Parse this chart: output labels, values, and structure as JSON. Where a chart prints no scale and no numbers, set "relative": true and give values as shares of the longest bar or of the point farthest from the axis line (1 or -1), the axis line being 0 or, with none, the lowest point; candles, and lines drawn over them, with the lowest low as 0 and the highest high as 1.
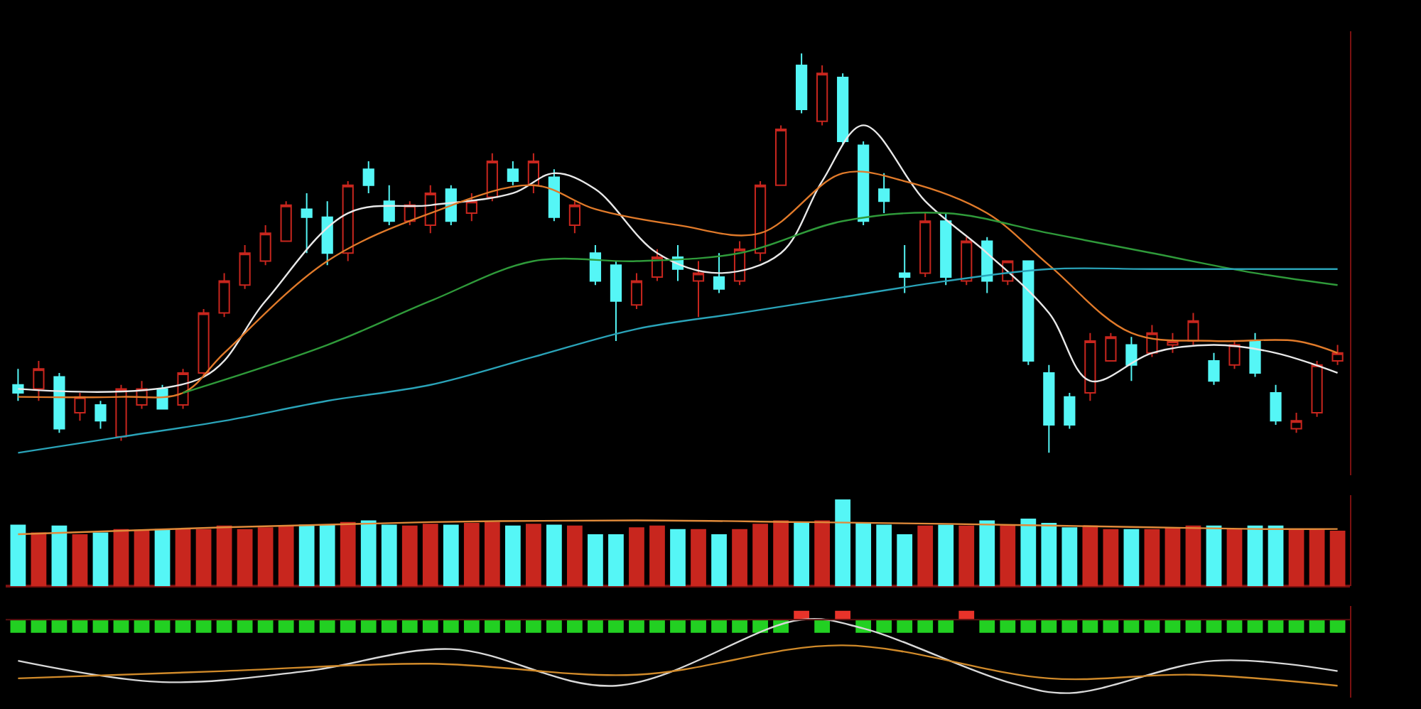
{
  "chart_data": [
    {
      "type": "candlestick",
      "relative": true,
      "categories": [
        null,
        null,
        null,
        null,
        null,
        null,
        null,
        null,
        null,
        null,
        null,
        null,
        null,
        null,
        null,
        null,
        null,
        null,
        null,
        null,
        null,
        null,
        null,
        null,
        null,
        null,
        null,
        null,
        null,
        null,
        null,
        null,
        null,
        null,
        null,
        null,
        null,
        null,
        null,
        null,
        null,
        null,
        null,
        null,
        null,
        null,
        null,
        null,
        null,
        null,
        null,
        null,
        null,
        null,
        null,
        null,
        null,
        null,
        null,
        null,
        null,
        null,
        null,
        null,
        null
      ],
      "ohlc": [
        [
          0.17,
          0.21,
          0.13,
          0.15
        ],
        [
          0.16,
          0.23,
          0.13,
          0.21
        ],
        [
          0.19,
          0.2,
          0.05,
          0.06
        ],
        [
          0.1,
          0.15,
          0.08,
          0.14
        ],
        [
          0.12,
          0.13,
          0.06,
          0.08
        ],
        [
          0.04,
          0.17,
          0.03,
          0.16
        ],
        [
          0.12,
          0.18,
          0.11,
          0.16
        ],
        [
          0.16,
          0.17,
          0.11,
          0.11
        ],
        [
          0.12,
          0.21,
          0.11,
          0.2
        ],
        [
          0.2,
          0.36,
          0.19,
          0.35
        ],
        [
          0.35,
          0.45,
          0.34,
          0.43
        ],
        [
          0.42,
          0.52,
          0.41,
          0.5
        ],
        [
          0.48,
          0.57,
          0.47,
          0.55
        ],
        [
          0.53,
          0.63,
          0.53,
          0.62
        ],
        [
          0.61,
          0.65,
          0.5,
          0.59
        ],
        [
          0.59,
          0.63,
          0.47,
          0.5
        ],
        [
          0.5,
          0.68,
          0.48,
          0.67
        ],
        [
          0.71,
          0.73,
          0.65,
          0.67
        ],
        [
          0.63,
          0.67,
          0.57,
          0.58
        ],
        [
          0.58,
          0.63,
          0.57,
          0.62
        ],
        [
          0.57,
          0.67,
          0.55,
          0.65
        ],
        [
          0.66,
          0.67,
          0.57,
          0.58
        ],
        [
          0.6,
          0.65,
          0.58,
          0.63
        ],
        [
          0.64,
          0.75,
          0.63,
          0.73
        ],
        [
          0.71,
          0.73,
          0.67,
          0.68
        ],
        [
          0.67,
          0.75,
          0.65,
          0.73
        ],
        [
          0.69,
          0.71,
          0.58,
          0.59
        ],
        [
          0.57,
          0.63,
          0.55,
          0.62
        ],
        [
          0.5,
          0.52,
          0.42,
          0.43
        ],
        [
          0.47,
          0.48,
          0.28,
          0.38
        ],
        [
          0.37,
          0.45,
          0.36,
          0.43
        ],
        [
          0.44,
          0.51,
          0.43,
          0.49
        ],
        [
          0.49,
          0.52,
          0.43,
          0.46
        ],
        [
          0.43,
          0.48,
          0.34,
          0.45
        ],
        [
          0.44,
          0.5,
          0.4,
          0.41
        ],
        [
          0.43,
          0.53,
          0.42,
          0.51
        ],
        [
          0.5,
          0.68,
          0.48,
          0.67
        ],
        [
          0.67,
          0.82,
          0.67,
          0.81
        ],
        [
          0.97,
          1.0,
          0.85,
          0.86
        ],
        [
          0.83,
          0.97,
          0.82,
          0.95
        ],
        [
          0.94,
          0.95,
          0.77,
          0.78
        ],
        [
          0.77,
          0.78,
          0.57,
          0.58
        ],
        [
          0.66,
          0.7,
          0.6,
          0.63
        ],
        [
          0.45,
          0.52,
          0.4,
          0.44
        ],
        [
          0.45,
          0.6,
          0.44,
          0.58
        ],
        [
          0.58,
          0.6,
          0.42,
          0.44
        ],
        [
          0.43,
          0.54,
          0.42,
          0.53
        ],
        [
          0.53,
          0.54,
          0.4,
          0.43
        ],
        [
          0.43,
          0.48,
          0.42,
          0.48
        ],
        [
          0.48,
          0.48,
          0.22,
          0.23
        ],
        [
          0.2,
          0.22,
          0.0,
          0.07
        ],
        [
          0.14,
          0.15,
          0.06,
          0.07
        ],
        [
          0.15,
          0.3,
          0.13,
          0.28
        ],
        [
          0.23,
          0.3,
          0.23,
          0.29
        ],
        [
          0.27,
          0.29,
          0.18,
          0.22
        ],
        [
          0.25,
          0.32,
          0.24,
          0.3
        ],
        [
          0.27,
          0.3,
          0.25,
          0.28
        ],
        [
          0.28,
          0.35,
          0.27,
          0.33
        ],
        [
          0.23,
          0.25,
          0.17,
          0.18
        ],
        [
          0.22,
          0.28,
          0.21,
          0.27
        ],
        [
          0.28,
          0.3,
          0.19,
          0.2
        ],
        [
          0.15,
          0.17,
          0.07,
          0.08
        ],
        [
          0.06,
          0.1,
          0.05,
          0.08
        ],
        [
          0.1,
          0.23,
          0.09,
          0.22
        ],
        [
          0.23,
          0.27,
          0.22,
          0.25
        ]
      ],
      "series": [
        {
          "type": "line",
          "color": "#e8e8e8",
          "values": [
            0.16,
            null,
            null,
            null,
            null,
            null,
            null,
            null,
            null,
            0.19,
            null,
            null,
            0.38,
            null,
            null,
            null,
            0.6,
            null,
            null,
            null,
            0.62,
            null,
            null,
            null,
            0.65,
            null,
            0.7,
            null,
            0.66,
            null,
            null,
            0.5,
            null,
            null,
            0.45,
            null,
            null,
            0.5,
            null,
            0.68,
            null,
            0.82,
            null,
            null,
            0.63,
            null,
            null,
            0.5,
            null,
            null,
            0.35,
            null,
            0.18,
            null,
            null,
            0.25,
            null,
            null,
            0.27,
            null,
            null,
            0.25,
            null,
            null,
            0.2
          ]
        },
        {
          "type": "line",
          "color": "#e07a2a",
          "values": [
            0.14,
            null,
            null,
            null,
            null,
            0.14,
            null,
            null,
            0.15,
            null,
            0.25,
            null,
            null,
            null,
            null,
            0.48,
            null,
            null,
            null,
            null,
            0.6,
            null,
            null,
            null,
            null,
            0.67,
            null,
            null,
            0.61,
            null,
            null,
            null,
            0.57,
            null,
            null,
            null,
            0.55,
            null,
            null,
            null,
            0.7,
            null,
            null,
            0.68,
            null,
            null,
            null,
            0.6,
            null,
            null,
            0.47,
            null,
            null,
            null,
            0.3,
            null,
            null,
            null,
            0.28,
            null,
            null,
            null,
            0.28,
            null,
            0.25
          ]
        },
        {
          "type": "line",
          "color": "#2f9a3a",
          "values": [
            null,
            null,
            null,
            null,
            null,
            null,
            null,
            null,
            0.15,
            null,
            null,
            null,
            null,
            null,
            null,
            0.27,
            null,
            null,
            null,
            null,
            0.38,
            null,
            null,
            null,
            null,
            0.48,
            null,
            null,
            null,
            null,
            0.48,
            null,
            null,
            null,
            null,
            0.5,
            null,
            null,
            null,
            null,
            0.58,
            null,
            null,
            null,
            null,
            0.6,
            null,
            null,
            null,
            null,
            0.55,
            null,
            null,
            null,
            null,
            0.5,
            null,
            null,
            null,
            null,
            0.45,
            null,
            null,
            null,
            0.42
          ]
        },
        {
          "type": "line",
          "color": "#2aa3b8",
          "values": [
            0.0,
            null,
            null,
            null,
            null,
            0.04,
            null,
            null,
            null,
            null,
            0.08,
            null,
            null,
            null,
            null,
            0.13,
            null,
            null,
            null,
            null,
            0.17,
            null,
            null,
            null,
            null,
            0.24,
            null,
            null,
            null,
            null,
            0.31,
            null,
            null,
            null,
            null,
            0.35,
            null,
            null,
            null,
            null,
            0.39,
            null,
            null,
            null,
            null,
            0.43,
            null,
            null,
            null,
            null,
            0.46,
            null,
            null,
            null,
            null,
            0.46,
            null,
            null,
            null,
            null,
            0.46,
            null,
            null,
            null,
            0.46
          ]
        }
      ]
    },
    {
      "type": "bar",
      "relative": true,
      "categories": [
        null,
        null,
        null,
        null,
        null,
        null,
        null,
        null,
        null,
        null,
        null,
        null,
        null,
        null,
        null,
        null,
        null,
        null,
        null,
        null,
        null,
        null,
        null,
        null,
        null,
        null,
        null,
        null,
        null,
        null,
        null,
        null,
        null,
        null,
        null,
        null,
        null,
        null,
        null,
        null,
        null,
        null,
        null,
        null,
        null,
        null,
        null,
        null,
        null,
        null,
        null,
        null,
        null,
        null,
        null,
        null,
        null,
        null,
        null,
        null,
        null,
        null,
        null,
        null,
        null
      ],
      "values": [
        0.71,
        0.62,
        0.7,
        0.6,
        0.62,
        0.66,
        0.65,
        0.66,
        0.66,
        0.66,
        0.7,
        0.66,
        0.68,
        0.7,
        0.71,
        0.71,
        0.74,
        0.76,
        0.71,
        0.7,
        0.72,
        0.71,
        0.73,
        0.74,
        0.7,
        0.72,
        0.71,
        0.7,
        0.6,
        0.6,
        0.68,
        0.7,
        0.66,
        0.66,
        0.6,
        0.66,
        0.72,
        0.76,
        0.73,
        0.76,
        1,
        0.73,
        0.71,
        0.6,
        0.7,
        0.71,
        0.7,
        0.76,
        0.7,
        0.78,
        0.73,
        0.68,
        0.7,
        0.66,
        0.66,
        0.66,
        0.68,
        0.7,
        0.7,
        0.66,
        0.7,
        0.7,
        0.66,
        0.66,
        0.64
      ],
      "colors": [
        "#55f6f6",
        "#c8261e",
        "#55f6f6",
        "#c8261e",
        "#55f6f6",
        "#c8261e",
        "#c8261e",
        "#55f6f6",
        "#c8261e",
        "#c8261e",
        "#c8261e",
        "#c8261e",
        "#c8261e",
        "#c8261e",
        "#55f6f6",
        "#55f6f6",
        "#c8261e",
        "#55f6f6",
        "#55f6f6",
        "#c8261e",
        "#c8261e",
        "#55f6f6",
        "#c8261e",
        "#c8261e",
        "#55f6f6",
        "#c8261e",
        "#55f6f6",
        "#c8261e",
        "#55f6f6",
        "#55f6f6",
        "#c8261e",
        "#c8261e",
        "#55f6f6",
        "#c8261e",
        "#55f6f6",
        "#c8261e",
        "#c8261e",
        "#c8261e",
        "#55f6f6",
        "#c8261e",
        "#55f6f6",
        "#55f6f6",
        "#55f6f6",
        "#55f6f6",
        "#c8261e",
        "#55f6f6",
        "#c8261e",
        "#55f6f6",
        "#c8261e",
        "#55f6f6",
        "#55f6f6",
        "#55f6f6",
        "#c8261e",
        "#c8261e",
        "#55f6f6",
        "#c8261e",
        "#c8261e",
        "#c8261e",
        "#55f6f6",
        "#c8261e",
        "#55f6f6",
        "#55f6f6",
        "#c8261e",
        "#c8261e",
        "#c8261e"
      ],
      "series": [
        {
          "type": "line",
          "color": "#e08a3a",
          "values": [
            0.6,
            null,
            null,
            null,
            null,
            null,
            null,
            null,
            null,
            null,
            0.68,
            null,
            null,
            null,
            null,
            null,
            null,
            null,
            null,
            null,
            0.74,
            null,
            null,
            null,
            null,
            null,
            null,
            null,
            null,
            null,
            0.76,
            null,
            null,
            null,
            null,
            null,
            null,
            null,
            0.74,
            null,
            null,
            null,
            null,
            null,
            null,
            0.72,
            null,
            null,
            null,
            null,
            0.7,
            null,
            null,
            null,
            null,
            0.68,
            null,
            null,
            null,
            null,
            0.66,
            null,
            null,
            null,
            0.66
          ]
        }
      ]
    },
    {
      "type": "bar",
      "relative": true,
      "categories": [
        null,
        null,
        null,
        null,
        null,
        null,
        null,
        null,
        null,
        null,
        null,
        null,
        null,
        null,
        null,
        null,
        null,
        null,
        null,
        null,
        null,
        null,
        null,
        null,
        null,
        null,
        null,
        null,
        null,
        null,
        null,
        null,
        null,
        null,
        null,
        null,
        null,
        null,
        null,
        null,
        null,
        null,
        null,
        null,
        null,
        null,
        null,
        null,
        null,
        null,
        null,
        null,
        null,
        null,
        null,
        null,
        null,
        null,
        null,
        null,
        null,
        null,
        null,
        null,
        null
      ],
      "values": [
        -0.18,
        -0.18,
        -0.18,
        -0.18,
        -0.18,
        -0.18,
        -0.18,
        -0.18,
        -0.18,
        -0.18,
        -0.18,
        -0.18,
        -0.18,
        -0.18,
        -0.18,
        -0.18,
        -0.18,
        -0.18,
        -0.18,
        -0.18,
        -0.18,
        -0.18,
        -0.18,
        -0.18,
        -0.18,
        -0.18,
        -0.18,
        -0.18,
        -0.18,
        -0.18,
        -0.18,
        -0.18,
        -0.18,
        -0.18,
        -0.18,
        -0.18,
        -0.18,
        -0.18,
        0.12,
        -0.18,
        0.12,
        -0.18,
        -0.18,
        -0.18,
        -0.18,
        -0.18,
        0.12,
        -0.18,
        -0.18,
        -0.18,
        -0.18,
        -0.18,
        -0.18,
        -0.18,
        -0.18,
        -0.18,
        -0.18,
        -0.18,
        -0.18,
        -0.18,
        -0.18,
        -0.18,
        -0.18,
        -0.18,
        -0.18
      ],
      "ref_lines": [
        {
          "axis": "y",
          "value": 0,
          "color": "#5a1010"
        }
      ],
      "colors": [
        "#22d022",
        "#22d022",
        "#22d022",
        "#22d022",
        "#22d022",
        "#22d022",
        "#22d022",
        "#22d022",
        "#22d022",
        "#22d022",
        "#22d022",
        "#22d022",
        "#22d022",
        "#22d022",
        "#22d022",
        "#22d022",
        "#22d022",
        "#22d022",
        "#22d022",
        "#22d022",
        "#22d022",
        "#22d022",
        "#22d022",
        "#22d022",
        "#22d022",
        "#22d022",
        "#22d022",
        "#22d022",
        "#22d022",
        "#22d022",
        "#22d022",
        "#22d022",
        "#22d022",
        "#22d022",
        "#22d022",
        "#22d022",
        "#22d022",
        "#22d022",
        "#e8332a",
        "#22d022",
        "#e8332a",
        "#22d022",
        "#22d022",
        "#22d022",
        "#22d022",
        "#22d022",
        "#e8332a",
        "#22d022",
        "#22d022",
        "#22d022",
        "#22d022",
        "#22d022",
        "#22d022",
        "#22d022",
        "#22d022",
        "#22d022",
        "#22d022",
        "#22d022",
        "#22d022",
        "#22d022",
        "#22d022",
        "#22d022",
        "#22d022",
        "#22d022",
        "#22d022"
      ],
      "series": [
        {
          "type": "line",
          "color": "#d8d8d8",
          "values": [
            -0.56,
            null,
            null,
            null,
            null,
            null,
            null,
            -0.85,
            null,
            null,
            null,
            null,
            null,
            null,
            -0.7,
            null,
            null,
            null,
            null,
            null,
            null,
            -0.4,
            null,
            null,
            null,
            null,
            null,
            null,
            null,
            -0.9,
            null,
            null,
            null,
            null,
            null,
            null,
            null,
            null,
            0.0,
            null,
            null,
            -0.12,
            null,
            null,
            null,
            null,
            null,
            null,
            -0.85,
            null,
            null,
            -1,
            null,
            null,
            null,
            null,
            null,
            null,
            -0.56,
            null,
            null,
            null,
            null,
            null,
            -0.7
          ]
        },
        {
          "type": "line",
          "color": "#d08a2a",
          "values": [
            -0.8,
            null,
            null,
            null,
            null,
            null,
            null,
            null,
            null,
            null,
            -0.7,
            null,
            null,
            null,
            null,
            null,
            null,
            null,
            null,
            null,
            -0.6,
            null,
            null,
            null,
            null,
            null,
            null,
            null,
            null,
            null,
            -0.75,
            null,
            null,
            null,
            null,
            null,
            null,
            null,
            null,
            null,
            -0.35,
            null,
            null,
            null,
            null,
            null,
            null,
            null,
            null,
            null,
            -0.8,
            null,
            null,
            null,
            null,
            null,
            null,
            -0.75,
            null,
            null,
            null,
            null,
            null,
            null,
            -0.9
          ]
        }
      ]
    }
  ]
}
